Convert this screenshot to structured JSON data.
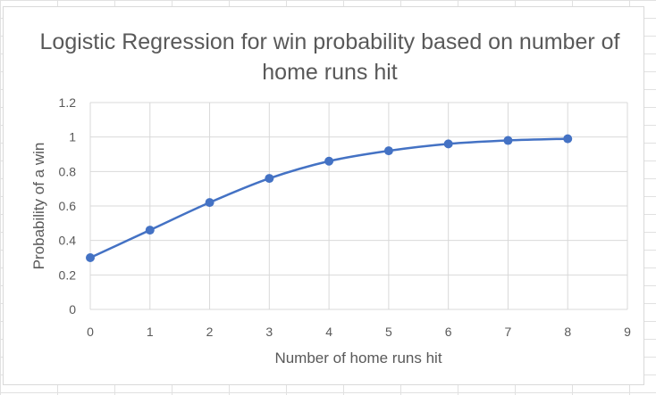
{
  "chart_data": {
    "type": "scatter",
    "title": "Logistic Regression for win probability based on number of home runs hit",
    "xlabel": "Number of home runs hit",
    "ylabel": "Probability of a win",
    "xlim": [
      0,
      9
    ],
    "ylim": [
      0,
      1.2
    ],
    "x_ticks": [
      "0",
      "1",
      "2",
      "3",
      "4",
      "5",
      "6",
      "7",
      "8",
      "9"
    ],
    "y_ticks": [
      "0",
      "0.2",
      "0.4",
      "0.6",
      "0.8",
      "1",
      "1.2"
    ],
    "grid": true,
    "smooth_line": true,
    "series_color": "#4472C4",
    "x": [
      0,
      1,
      2,
      3,
      4,
      5,
      6,
      7,
      8
    ],
    "y": [
      0.3,
      0.46,
      0.62,
      0.76,
      0.86,
      0.92,
      0.96,
      0.98,
      0.99
    ]
  }
}
